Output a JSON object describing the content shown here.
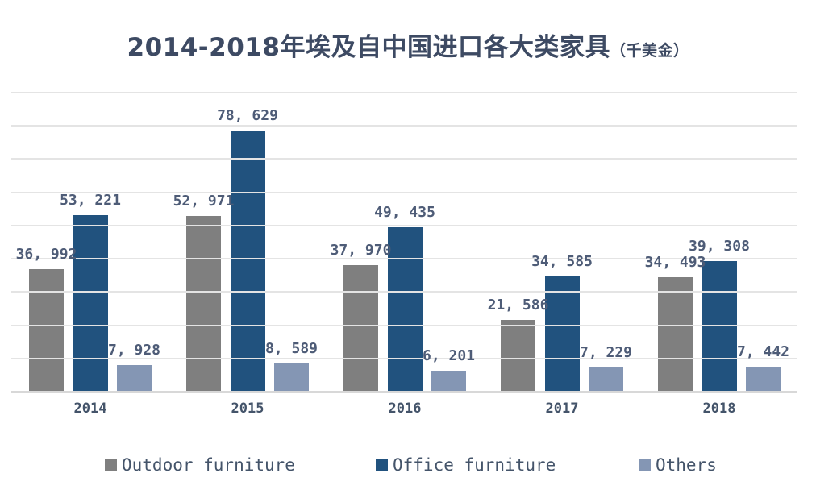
{
  "title": {
    "main": "2014-2018年埃及自中国进口各大类家具",
    "unit": "（千美金）"
  },
  "colors": {
    "outdoor": "#7f7f7f",
    "office": "#21527e",
    "others": "#8496b4",
    "title_text": "#3d4a63",
    "label_text": "#4e5c77",
    "axis_text": "#44546a",
    "gridline": "#e4e4e4"
  },
  "chart_data": {
    "type": "bar",
    "title": "2014-2018年埃及自中国进口各大类家具（千美金）",
    "unit_note": "千美金",
    "categories": [
      "2014",
      "2015",
      "2016",
      "2017",
      "2018"
    ],
    "series": [
      {
        "name": "Outdoor furniture",
        "color": "#7f7f7f",
        "values": [
          36992,
          52971,
          37970,
          21586,
          34493
        ],
        "labels": [
          "36, 992",
          "52, 971",
          "37, 970",
          "21, 586",
          "34, 493"
        ]
      },
      {
        "name": "Office furniture",
        "color": "#21527e",
        "values": [
          53221,
          78629,
          49435,
          34585,
          39308
        ],
        "labels": [
          "53, 221",
          "78, 629",
          "49, 435",
          "34, 585",
          "39, 308"
        ]
      },
      {
        "name": "Others",
        "color": "#8496b4",
        "values": [
          7928,
          8589,
          6201,
          7229,
          7442
        ],
        "labels": [
          "7, 928",
          "8, 589",
          "6, 201",
          "7, 229",
          "7, 442"
        ]
      }
    ],
    "ylim": [
      0,
      90000
    ],
    "gridline_interval": 10000,
    "grid": true,
    "y_axis_labels_visible": false,
    "data_labels_visible": true,
    "legend_position": "bottom"
  },
  "legend": {
    "items": [
      {
        "label": "Outdoor furniture",
        "color": "#7f7f7f"
      },
      {
        "label": "Office furniture",
        "color": "#21527e"
      },
      {
        "label": "Others",
        "color": "#8496b4"
      }
    ]
  }
}
